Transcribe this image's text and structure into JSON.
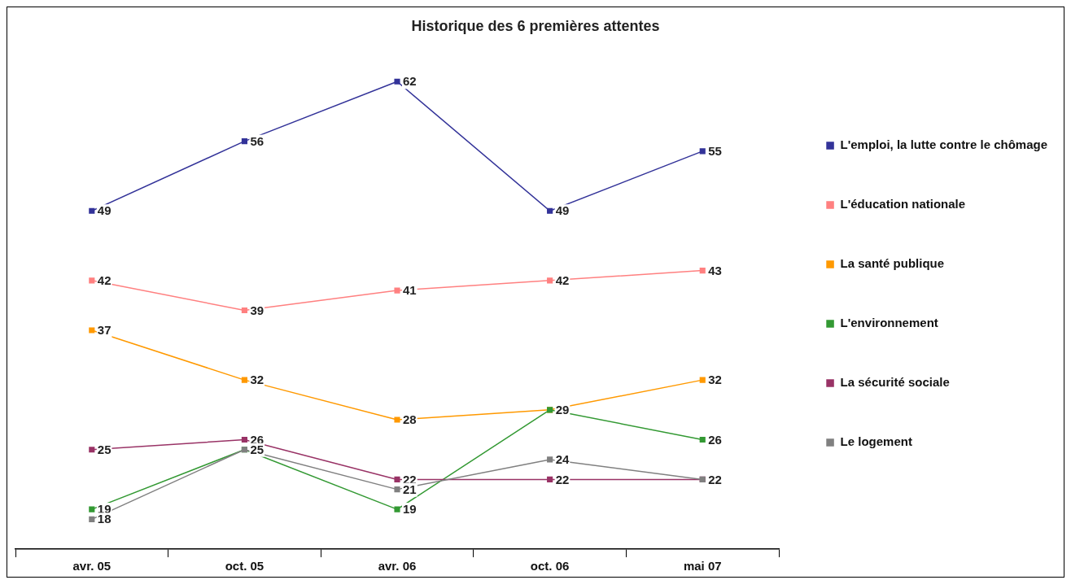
{
  "chart_data": {
    "type": "line",
    "title": "Historique des 6 premières attentes",
    "categories": [
      "avr. 05",
      "oct. 05",
      "avr. 06",
      "oct. 06",
      "mai 07"
    ],
    "legend": "right",
    "marker": "square",
    "line_style": "solid",
    "grid": false,
    "series": [
      {
        "name": "L'emploi, la lutte contre le chômage",
        "color": "#333399",
        "values": [
          49,
          56,
          62,
          49,
          55
        ],
        "value_labels": [
          "49",
          "56",
          "62",
          "49",
          "55"
        ]
      },
      {
        "name": "L'éducation nationale",
        "color": "#ff8080",
        "values": [
          42,
          39,
          41,
          42,
          43
        ],
        "value_labels": [
          "42",
          "39",
          "41",
          "42",
          "43"
        ]
      },
      {
        "name": "La santé publique",
        "color": "#ff9900",
        "values": [
          37,
          32,
          28,
          29,
          32
        ],
        "value_labels": [
          "37",
          "32",
          "28",
          null,
          "32"
        ]
      },
      {
        "name": "L'environnement",
        "color": "#339933",
        "values": [
          19,
          25,
          19,
          29,
          26
        ],
        "value_labels": [
          "19",
          null,
          "19",
          "29",
          "26"
        ]
      },
      {
        "name": "La sécurité sociale",
        "color": "#993366",
        "values": [
          25,
          26,
          22,
          22,
          22
        ],
        "value_labels": [
          "25",
          "26",
          "22",
          "22",
          "22"
        ]
      },
      {
        "name": "Le logement",
        "color": "#808080",
        "values": [
          18,
          25,
          21,
          24,
          22
        ],
        "value_labels": [
          "18",
          "25",
          "21",
          "24",
          null
        ]
      }
    ]
  }
}
